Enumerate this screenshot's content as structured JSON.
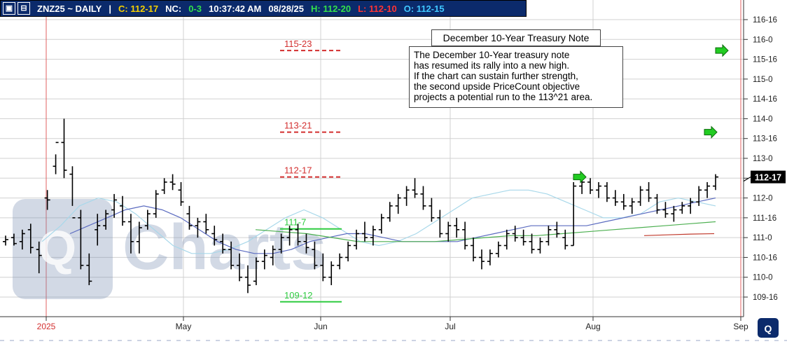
{
  "header": {
    "symbol": "ZNZ25 ~ DAILY",
    "separator": "|",
    "close": "C: 112-17",
    "net_change_label": "NC:",
    "net_change": "0-3",
    "time": "10:37:42 AM",
    "date": "08/28/25",
    "high": "H: 112-20",
    "low": "L: 112-10",
    "open": "O: 112-15",
    "colors": {
      "background": "#0b2a6b",
      "close": "#f5d000",
      "change": "#33e04a",
      "high": "#33e04a",
      "low": "#ff3333",
      "open": "#40c8ff"
    },
    "icons": [
      "expand-icon",
      "minimize-icon"
    ]
  },
  "annotation": {
    "title": "December 10-Year Treasury Note",
    "lines": [
      "The December 10-Year treasury note",
      "has resumed its rally into a new high.",
      "If the chart can sustain further strength,",
      "the second upside PriceCount objective",
      "projects a potential run to the 113^21 area."
    ]
  },
  "watermark": {
    "text": "Charts",
    "logo": "qt-logo"
  },
  "corner_logo": "qt-logo",
  "chart_data": {
    "type": "ohlc",
    "y_unit": "32nds of a point",
    "ylim": [
      109.25,
      116.25
    ],
    "y_ticks": [
      {
        "v": 116.5,
        "label": "116-16"
      },
      {
        "v": 116.0,
        "label": "116-0"
      },
      {
        "v": 115.5,
        "label": "115-16"
      },
      {
        "v": 115.0,
        "label": "115-0"
      },
      {
        "v": 114.5,
        "label": "114-16"
      },
      {
        "v": 114.0,
        "label": "114-0"
      },
      {
        "v": 113.5,
        "label": "113-16"
      },
      {
        "v": 113.0,
        "label": "113-0"
      },
      {
        "v": 112.5,
        "label": "112-16"
      },
      {
        "v": 112.0,
        "label": "112-0"
      },
      {
        "v": 111.5,
        "label": "111-16"
      },
      {
        "v": 111.0,
        "label": "111-0"
      },
      {
        "v": 110.5,
        "label": "110-16"
      },
      {
        "v": 110.0,
        "label": "110-0"
      },
      {
        "v": 109.5,
        "label": "109-16"
      }
    ],
    "x_labels": [
      {
        "label": "2025",
        "red": true
      },
      {
        "label": "May",
        "red": false
      },
      {
        "label": "Jun",
        "red": false
      },
      {
        "label": "Jul",
        "red": false
      },
      {
        "label": "Aug",
        "red": false
      },
      {
        "label": "Sep",
        "red": false
      }
    ],
    "last_price_label": "112-17",
    "last_price": 112.53,
    "objectives": [
      {
        "label": "115-23",
        "value": 115.72,
        "style": "dashed",
        "color": "#d32f2f"
      },
      {
        "label": "113-21",
        "value": 113.66,
        "style": "dashed",
        "color": "#d32f2f"
      },
      {
        "label": "112-17",
        "value": 112.53,
        "style": "dashed",
        "color": "#d32f2f"
      },
      {
        "label": "111-7",
        "value": 111.22,
        "style": "solid",
        "color": "#2ecc40"
      },
      {
        "label": "109-12",
        "value": 109.38,
        "style": "solid",
        "color": "#2ecc40"
      }
    ],
    "arrows": [
      {
        "target": "115-23",
        "color": "#22cc22"
      },
      {
        "target": "113-21",
        "color": "#22cc22"
      },
      {
        "target": "112-17",
        "color": "#22cc22"
      }
    ],
    "bars": [
      [
        110.9,
        111.05,
        110.8,
        110.95
      ],
      [
        111.0,
        111.1,
        110.8,
        110.85
      ],
      [
        110.9,
        111.2,
        110.7,
        111.1
      ],
      [
        111.2,
        111.35,
        110.6,
        110.75
      ],
      [
        110.7,
        110.9,
        110.1,
        110.55
      ],
      [
        112.0,
        112.2,
        111.7,
        111.95
      ],
      [
        112.8,
        113.1,
        112.6,
        113.4
      ],
      [
        113.4,
        114.0,
        112.5,
        112.7
      ],
      [
        112.6,
        112.8,
        111.8,
        111.5
      ],
      [
        111.5,
        111.7,
        110.2,
        110.3
      ],
      [
        110.3,
        110.6,
        109.8,
        109.9
      ],
      [
        111.2,
        111.6,
        110.8,
        111.3
      ],
      [
        111.3,
        111.7,
        111.2,
        111.6
      ],
      [
        111.7,
        112.1,
        111.5,
        111.95
      ],
      [
        111.8,
        112.05,
        111.3,
        111.4
      ],
      [
        111.4,
        111.6,
        110.6,
        110.9
      ],
      [
        110.9,
        111.4,
        110.6,
        111.25
      ],
      [
        111.3,
        111.7,
        111.2,
        111.6
      ],
      [
        111.6,
        112.2,
        111.5,
        112.1
      ],
      [
        112.2,
        112.5,
        112.1,
        112.4
      ],
      [
        112.4,
        112.6,
        112.2,
        112.35
      ],
      [
        112.2,
        112.4,
        111.8,
        111.9
      ],
      [
        111.6,
        111.8,
        111.2,
        111.3
      ],
      [
        111.3,
        111.5,
        111.0,
        111.4
      ],
      [
        111.4,
        111.6,
        111.1,
        111.2
      ],
      [
        111.1,
        111.3,
        110.8,
        110.95
      ],
      [
        110.9,
        111.1,
        110.6,
        110.7
      ],
      [
        110.7,
        110.9,
        110.2,
        110.3
      ],
      [
        110.3,
        110.6,
        109.9,
        110.0
      ],
      [
        110.0,
        110.3,
        109.6,
        109.8
      ],
      [
        109.9,
        110.5,
        109.8,
        110.4
      ],
      [
        110.4,
        110.7,
        110.2,
        110.55
      ],
      [
        110.5,
        110.8,
        110.3,
        110.7
      ],
      [
        110.7,
        111.1,
        110.6,
        111.0
      ],
      [
        111.0,
        111.3,
        110.8,
        111.2
      ],
      [
        111.2,
        111.35,
        110.8,
        110.9
      ],
      [
        110.9,
        111.1,
        110.6,
        110.75
      ],
      [
        110.7,
        110.9,
        110.2,
        110.3
      ],
      [
        110.3,
        110.6,
        109.9,
        110.0
      ],
      [
        110.0,
        110.4,
        109.8,
        110.3
      ],
      [
        110.3,
        110.6,
        110.2,
        110.5
      ],
      [
        110.5,
        110.9,
        110.4,
        110.8
      ],
      [
        110.8,
        111.2,
        110.7,
        111.1
      ],
      [
        111.1,
        111.4,
        110.9,
        111.0
      ],
      [
        111.0,
        111.3,
        110.8,
        111.2
      ],
      [
        111.2,
        111.6,
        111.1,
        111.5
      ],
      [
        111.5,
        111.9,
        111.4,
        111.8
      ],
      [
        111.8,
        112.1,
        111.6,
        112.0
      ],
      [
        112.0,
        112.3,
        111.8,
        112.2
      ],
      [
        112.2,
        112.5,
        112.0,
        112.1
      ],
      [
        112.1,
        112.3,
        111.7,
        111.8
      ],
      [
        111.8,
        112.0,
        111.4,
        111.5
      ],
      [
        111.5,
        111.7,
        111.0,
        111.1
      ],
      [
        111.1,
        111.4,
        110.9,
        111.3
      ],
      [
        111.3,
        111.5,
        111.0,
        111.2
      ],
      [
        111.2,
        111.4,
        110.7,
        110.8
      ],
      [
        110.8,
        111.0,
        110.4,
        110.5
      ],
      [
        110.5,
        110.7,
        110.2,
        110.4
      ],
      [
        110.4,
        110.7,
        110.3,
        110.6
      ],
      [
        110.6,
        110.9,
        110.5,
        110.8
      ],
      [
        110.8,
        111.2,
        110.7,
        111.1
      ],
      [
        111.1,
        111.3,
        110.9,
        111.0
      ],
      [
        111.0,
        111.2,
        110.8,
        110.9
      ],
      [
        110.9,
        111.1,
        110.6,
        110.7
      ],
      [
        110.7,
        111.0,
        110.6,
        110.9
      ],
      [
        110.9,
        111.3,
        110.8,
        111.2
      ],
      [
        111.2,
        111.4,
        111.0,
        111.1
      ],
      [
        111.0,
        111.2,
        110.7,
        110.8
      ],
      [
        110.8,
        112.4,
        110.8,
        112.3
      ],
      [
        112.3,
        112.5,
        112.1,
        112.4
      ],
      [
        112.4,
        112.5,
        112.1,
        112.2
      ],
      [
        112.2,
        112.4,
        112.0,
        112.3
      ],
      [
        112.3,
        112.4,
        111.9,
        112.0
      ],
      [
        112.0,
        112.2,
        111.8,
        111.9
      ],
      [
        111.9,
        112.1,
        111.7,
        111.8
      ],
      [
        111.8,
        112.0,
        111.6,
        111.9
      ],
      [
        111.9,
        112.3,
        111.8,
        112.2
      ],
      [
        112.2,
        112.4,
        111.9,
        112.0
      ],
      [
        112.0,
        112.1,
        111.6,
        111.7
      ],
      [
        111.7,
        111.9,
        111.5,
        111.6
      ],
      [
        111.6,
        111.8,
        111.4,
        111.7
      ],
      [
        111.7,
        111.9,
        111.6,
        111.8
      ],
      [
        111.8,
        112.0,
        111.6,
        111.9
      ],
      [
        111.9,
        112.3,
        111.8,
        112.2
      ],
      [
        112.2,
        112.4,
        112.0,
        112.3
      ],
      [
        112.3,
        112.6,
        112.2,
        112.53
      ]
    ],
    "moving_averages": [
      {
        "name": "",
        "color": "#a8d8ea",
        "values": [
          110.9,
          111.3,
          111.8,
          112.0,
          111.9,
          111.6,
          111.2,
          110.8,
          110.6,
          110.6,
          110.7,
          110.9,
          111.2,
          111.5,
          111.7,
          111.5,
          111.2,
          110.9,
          110.8,
          110.9,
          111.1,
          111.4,
          111.7,
          112.0,
          112.1,
          112.2,
          112.2,
          112.1,
          111.9,
          111.7,
          111.5,
          111.5,
          111.6,
          111.9,
          112.0,
          111.9,
          111.8
        ]
      },
      {
        "name": "",
        "color": "#5b6bc0",
        "values": [
          111.1,
          111.3,
          111.5,
          111.7,
          111.8,
          111.7,
          111.5,
          111.2,
          110.9,
          110.7,
          110.6,
          110.6,
          110.7,
          110.9,
          111.0,
          111.1,
          111.1,
          111.0,
          110.9,
          110.9,
          110.9,
          110.9,
          111.0,
          111.1,
          111.2,
          111.3,
          111.3,
          111.3,
          111.3,
          111.4,
          111.5,
          111.6,
          111.7,
          111.8,
          111.9,
          112.0
        ]
      },
      {
        "name": "",
        "color": "#4caf50",
        "values": [
          111.2,
          111.15,
          111.1,
          111.0,
          110.9,
          110.9,
          110.9,
          110.9,
          110.95,
          111.0,
          111.05,
          111.05,
          111.1,
          111.15,
          111.2,
          111.25,
          111.3,
          111.35,
          111.4
        ]
      },
      {
        "name": "",
        "color": "#c0392b",
        "values": [
          111.05,
          111.07,
          111.09,
          111.1
        ]
      }
    ]
  }
}
